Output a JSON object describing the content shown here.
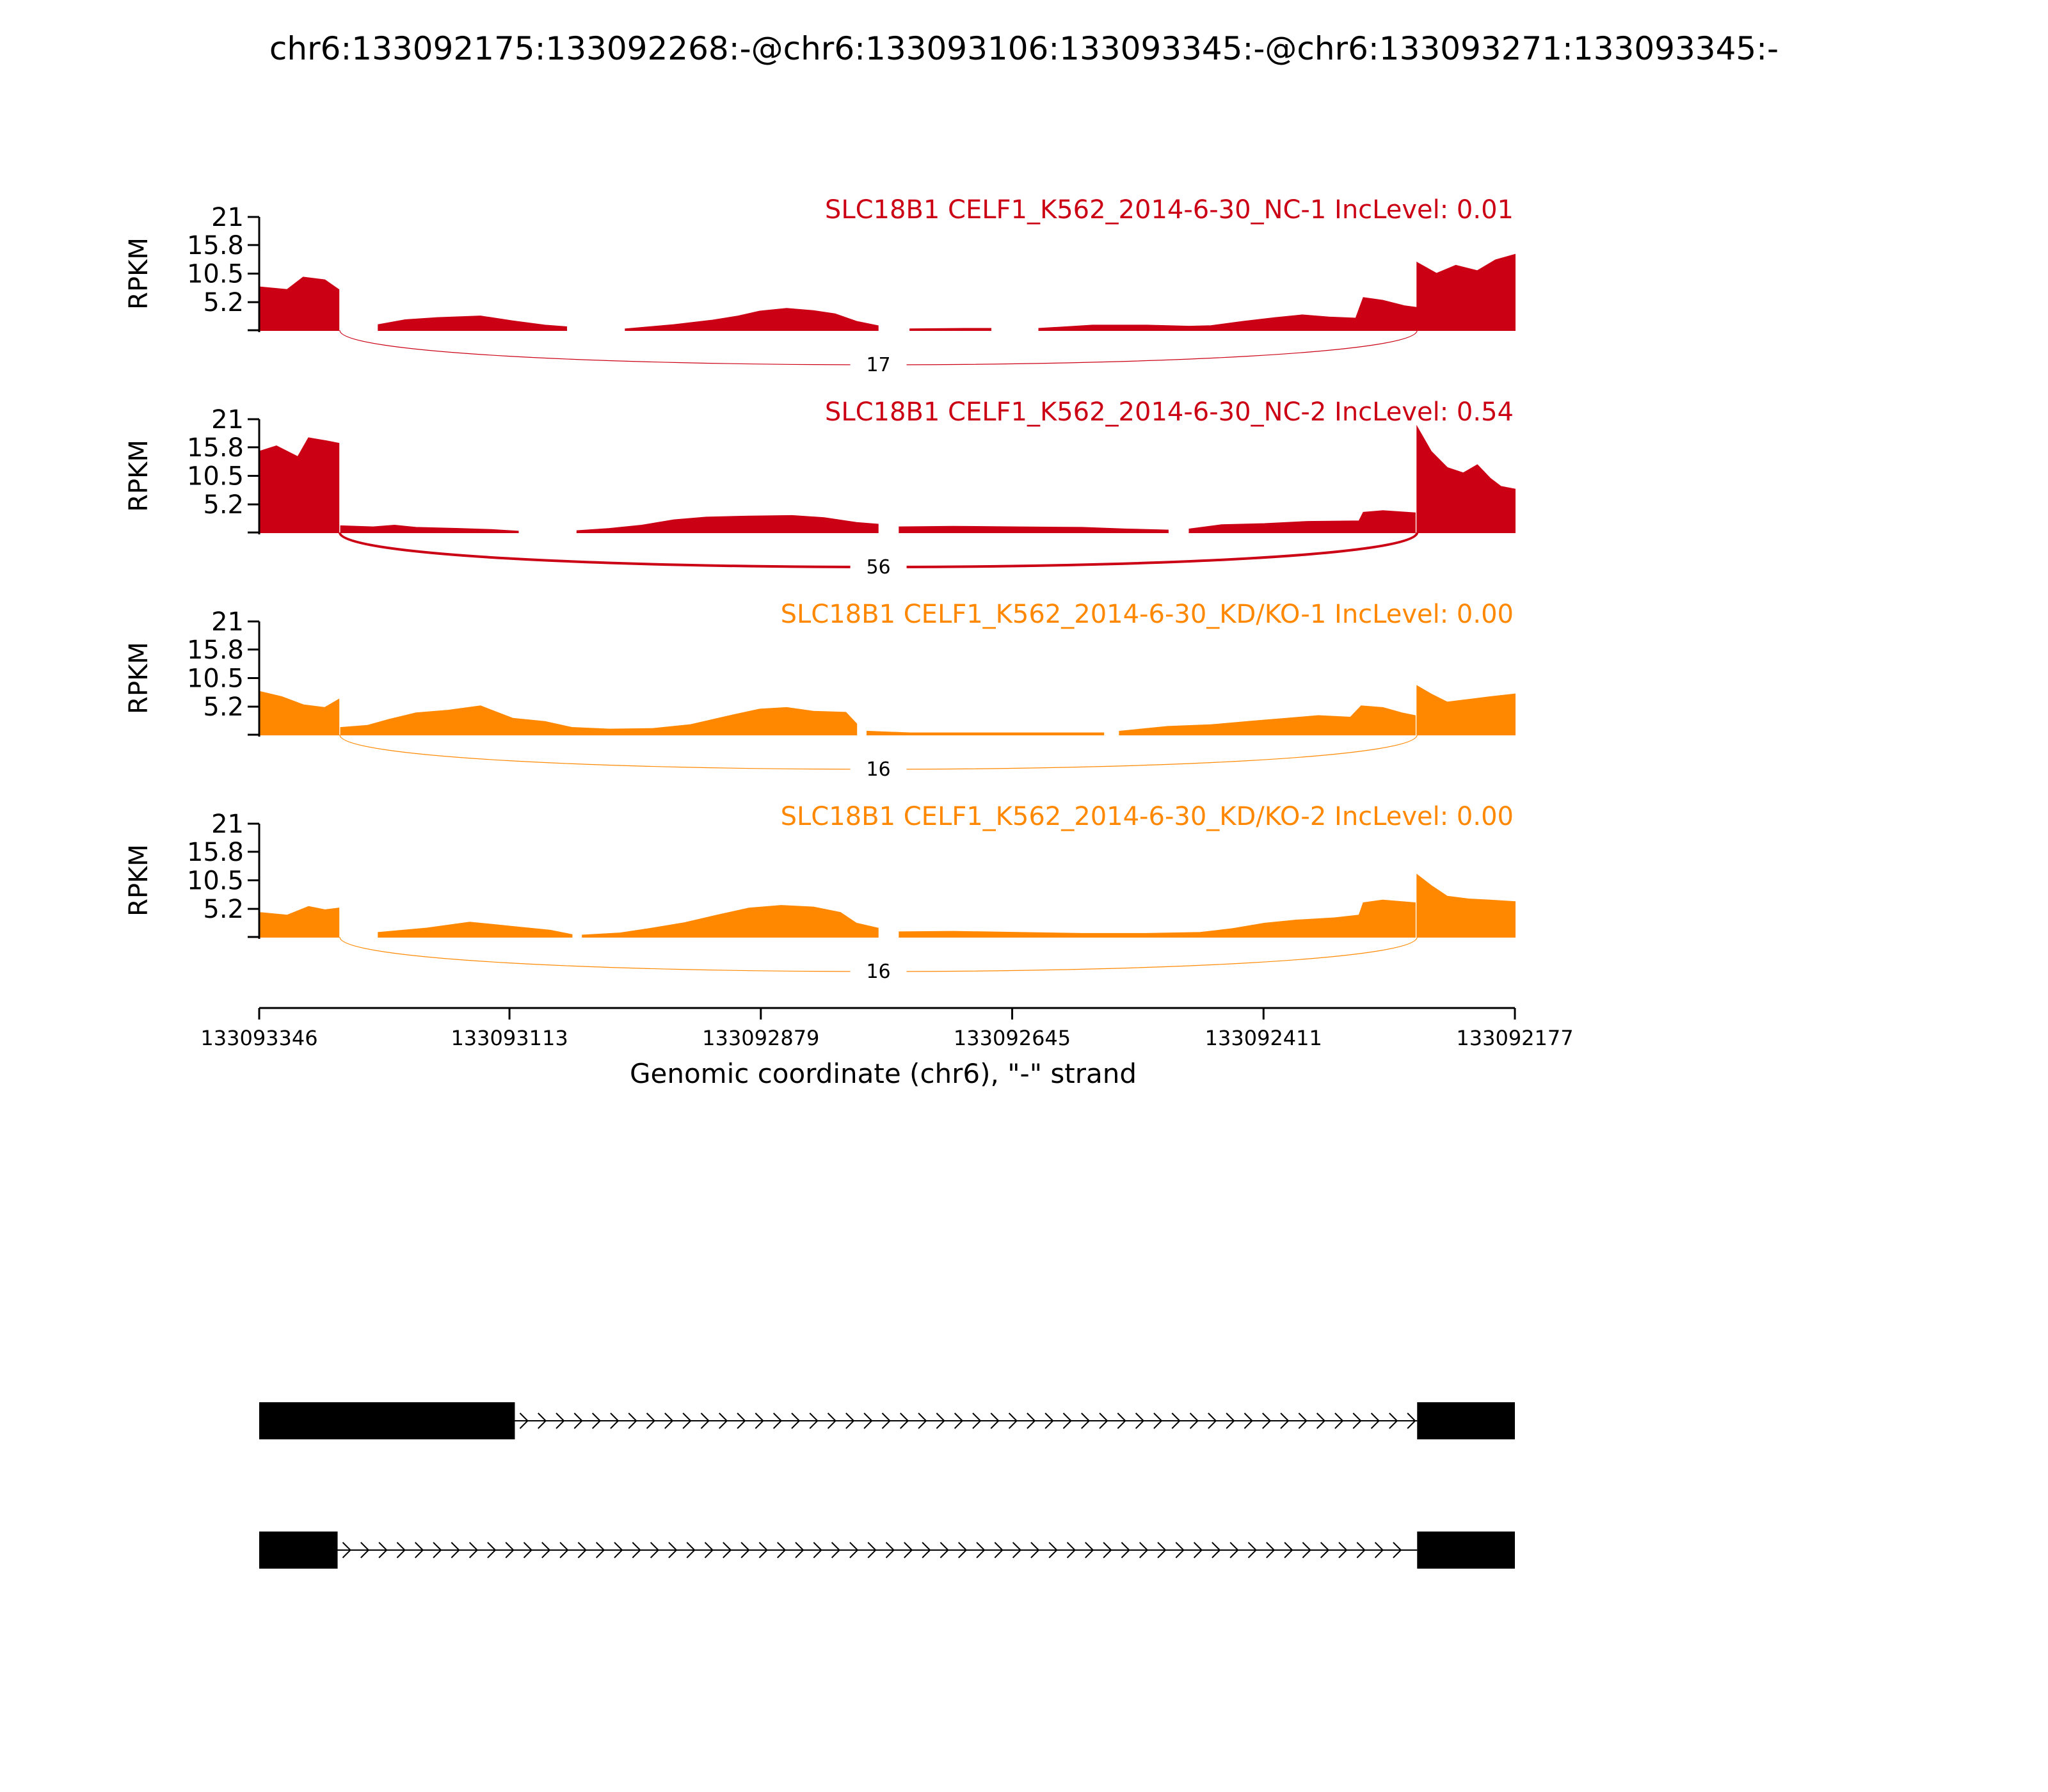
{
  "chart_data": {
    "type": "area",
    "title": "chr6:133092175:133092268:-@chr6:133093106:133093345:-@chr6:133093271:133093345:-",
    "ylabel": "RPKM",
    "xlabel": "Genomic coordinate (chr6), \"-\" strand",
    "xlim": [
      133093346,
      133092177
    ],
    "x_ticks": [
      "133093346",
      "133093113",
      "133092879",
      "133092645",
      "133092411",
      "133092177"
    ],
    "y_ticks": [
      "21",
      "15.8",
      "10.5",
      "5.2"
    ],
    "ylim": [
      0,
      21
    ],
    "colors": {
      "NC": "#cc0014",
      "KD": "#ff8800",
      "gene": "#000000"
    },
    "panels": [
      {
        "label": "SLC18B1 CELF1_K562_2014-6-30_NC-1 IncLevel: 0.01",
        "color": "#cc0014",
        "junction": {
          "from": 133093271,
          "to": 133092268,
          "reads": "17"
        },
        "segments": [
          [
            [
              133093346,
              8
            ],
            [
              133093320,
              7.5
            ],
            [
              133093305,
              9.8
            ],
            [
              133093285,
              9.3
            ],
            [
              133093272,
              7.5
            ]
          ],
          [
            [
              133093235,
              1
            ],
            [
              133093210,
              1.9
            ],
            [
              133093180,
              2.3
            ],
            [
              133093140,
              2.6
            ],
            [
              133093110,
              1.7
            ],
            [
              133093080,
              0.9
            ],
            [
              133093060,
              0.6
            ]
          ],
          [
            [
              133093005,
              0.2
            ],
            [
              133092960,
              1
            ],
            [
              133092925,
              1.8
            ],
            [
              133092900,
              2.6
            ],
            [
              133092880,
              3.5
            ],
            [
              133092855,
              4
            ],
            [
              133092830,
              3.6
            ],
            [
              133092810,
              3
            ],
            [
              133092790,
              1.6
            ],
            [
              133092770,
              0.8
            ]
          ],
          [
            [
              133092740,
              0.2
            ],
            [
              133092690,
              0.3
            ],
            [
              133092665,
              0.3
            ]
          ],
          [
            [
              133092620,
              0.3
            ],
            [
              133092570,
              0.9
            ],
            [
              133092520,
              0.9
            ],
            [
              133092480,
              0.7
            ],
            [
              133092460,
              0.8
            ],
            [
              133092430,
              1.6
            ],
            [
              133092400,
              2.3
            ],
            [
              133092375,
              2.8
            ],
            [
              133092350,
              2.4
            ],
            [
              133092325,
              2.2
            ],
            [
              133092318,
              6
            ],
            [
              133092300,
              5.5
            ],
            [
              133092280,
              4.5
            ],
            [
              133092269,
              4.2
            ]
          ],
          [
            [
              133092268,
              12.5
            ],
            [
              133092250,
              10.5
            ],
            [
              133092232,
              12
            ],
            [
              133092212,
              11
            ],
            [
              133092195,
              13
            ],
            [
              133092177,
              14
            ]
          ]
        ]
      },
      {
        "label": "SLC18B1 CELF1_K562_2014-6-30_NC-2 IncLevel: 0.54",
        "color": "#cc0014",
        "junction": {
          "from": 133093271,
          "to": 133092268,
          "reads": "56"
        },
        "segments": [
          [
            [
              133093346,
              15
            ],
            [
              133093330,
              16
            ],
            [
              133093310,
              14
            ],
            [
              133093300,
              17.5
            ],
            [
              133093285,
              17
            ],
            [
              133093272,
              16.5
            ]
          ],
          [
            [
              133093270,
              1.2
            ],
            [
              133093240,
              1
            ],
            [
              133093220,
              1.3
            ],
            [
              133093200,
              0.9
            ],
            [
              133093160,
              0.7
            ],
            [
              133093130,
              0.5
            ],
            [
              133093105,
              0.2
            ]
          ],
          [
            [
              133093050,
              0.3
            ],
            [
              133093020,
              0.7
            ],
            [
              133092990,
              1.3
            ],
            [
              133092960,
              2.3
            ],
            [
              133092930,
              2.8
            ],
            [
              133092890,
              3
            ],
            [
              133092850,
              3.1
            ],
            [
              133092820,
              2.7
            ],
            [
              133092790,
              1.8
            ],
            [
              133092770,
              1.5
            ]
          ],
          [
            [
              133092750,
              1
            ],
            [
              133092700,
              1.1
            ],
            [
              133092640,
              1
            ],
            [
              133092580,
              0.9
            ],
            [
              133092540,
              0.6
            ],
            [
              133092500,
              0.4
            ]
          ],
          [
            [
              133092480,
              0.6
            ],
            [
              133092450,
              1.4
            ],
            [
              133092410,
              1.6
            ],
            [
              133092370,
              2
            ],
            [
              133092322,
              2.1
            ],
            [
              133092318,
              3.7
            ],
            [
              133092300,
              4
            ],
            [
              133092270,
              3.6
            ]
          ],
          [
            [
              133092268,
              19.5
            ],
            [
              133092255,
              15
            ],
            [
              133092240,
              12
            ],
            [
              133092225,
              11
            ],
            [
              133092212,
              12.5
            ],
            [
              133092200,
              10
            ],
            [
              133092190,
              8.5
            ],
            [
              133092177,
              8
            ]
          ]
        ]
      },
      {
        "label": "SLC18B1 CELF1_K562_2014-6-30_KD/KO-1 IncLevel: 0.00",
        "color": "#ff8800",
        "junction": {
          "from": 133093271,
          "to": 133092268,
          "reads": "16"
        },
        "segments": [
          [
            [
              133093346,
              8
            ],
            [
              133093325,
              7
            ],
            [
              133093305,
              5.5
            ],
            [
              133093285,
              5
            ],
            [
              133093272,
              6.5
            ]
          ],
          [
            [
              133093270,
              1.3
            ],
            [
              133093245,
              1.7
            ],
            [
              133093225,
              2.8
            ],
            [
              133093200,
              4
            ],
            [
              133093170,
              4.5
            ],
            [
              133093140,
              5.3
            ],
            [
              133093110,
              3
            ],
            [
              133093080,
              2.4
            ],
            [
              133093055,
              1.3
            ],
            [
              133093020,
              1
            ],
            [
              133092980,
              1.1
            ],
            [
              133092945,
              1.8
            ],
            [
              133092910,
              3.4
            ],
            [
              133092880,
              4.7
            ],
            [
              133092855,
              5
            ],
            [
              133092830,
              4.3
            ],
            [
              133092800,
              4.1
            ],
            [
              133092790,
              2
            ]
          ],
          [
            [
              133092780,
              0.6
            ],
            [
              133092740,
              0.3
            ],
            [
              133092700,
              0.3
            ],
            [
              133092620,
              0.3
            ],
            [
              133092560,
              0.3
            ]
          ],
          [
            [
              133092545,
              0.6
            ],
            [
              133092500,
              1.5
            ],
            [
              133092460,
              1.8
            ],
            [
              133092420,
              2.5
            ],
            [
              133092390,
              3
            ],
            [
              133092360,
              3.5
            ],
            [
              133092330,
              3.2
            ],
            [
              133092320,
              5.3
            ],
            [
              133092300,
              5
            ],
            [
              133092282,
              4
            ],
            [
              133092270,
              3.5
            ]
          ],
          [
            [
              133092268,
              9
            ],
            [
              133092255,
              7.5
            ],
            [
              133092240,
              6
            ],
            [
              133092220,
              6.5
            ],
            [
              133092200,
              7
            ],
            [
              133092177,
              7.5
            ]
          ]
        ]
      },
      {
        "label": "SLC18B1 CELF1_K562_2014-6-30_KD/KO-2 IncLevel: 0.00",
        "color": "#ff8800",
        "junction": {
          "from": 133093271,
          "to": 133092268,
          "reads": "16"
        },
        "segments": [
          [
            [
              133093346,
              4.5
            ],
            [
              133093320,
              4
            ],
            [
              133093300,
              5.6
            ],
            [
              133093285,
              5
            ],
            [
              133093272,
              5.3
            ]
          ],
          [
            [
              133093235,
              0.8
            ],
            [
              133093190,
              1.6
            ],
            [
              133093150,
              2.7
            ],
            [
              133093110,
              1.9
            ],
            [
              133093075,
              1.2
            ],
            [
              133093055,
              0.4
            ]
          ],
          [
            [
              133093045,
              0.3
            ],
            [
              133093010,
              0.7
            ],
            [
              133092980,
              1.6
            ],
            [
              133092950,
              2.6
            ],
            [
              133092920,
              4
            ],
            [
              133092890,
              5.3
            ],
            [
              133092860,
              5.8
            ],
            [
              133092830,
              5.5
            ],
            [
              133092805,
              4.5
            ],
            [
              133092790,
              2.5
            ],
            [
              133092770,
              1.6
            ]
          ],
          [
            [
              133092750,
              0.9
            ],
            [
              133092700,
              1
            ],
            [
              133092640,
              0.8
            ],
            [
              133092580,
              0.6
            ],
            [
              133092520,
              0.6
            ],
            [
              133092470,
              0.8
            ],
            [
              133092440,
              1.5
            ],
            [
              133092410,
              2.5
            ],
            [
              133092380,
              3.1
            ],
            [
              133092345,
              3.5
            ],
            [
              133092322,
              4
            ],
            [
              133092318,
              6.3
            ],
            [
              133092300,
              6.8
            ],
            [
              133092270,
              6.3
            ]
          ],
          [
            [
              133092268,
              11.5
            ],
            [
              133092255,
              9.5
            ],
            [
              133092240,
              7.5
            ],
            [
              133092220,
              7
            ],
            [
              133092200,
              6.8
            ],
            [
              133092177,
              6.5
            ]
          ]
        ]
      }
    ],
    "gene_models": [
      {
        "exons": [
          [
            133093346,
            133093108
          ],
          [
            133092268,
            133092177
          ]
        ]
      },
      {
        "exons": [
          [
            133093346,
            133093273
          ],
          [
            133092268,
            133092177
          ]
        ]
      }
    ]
  }
}
